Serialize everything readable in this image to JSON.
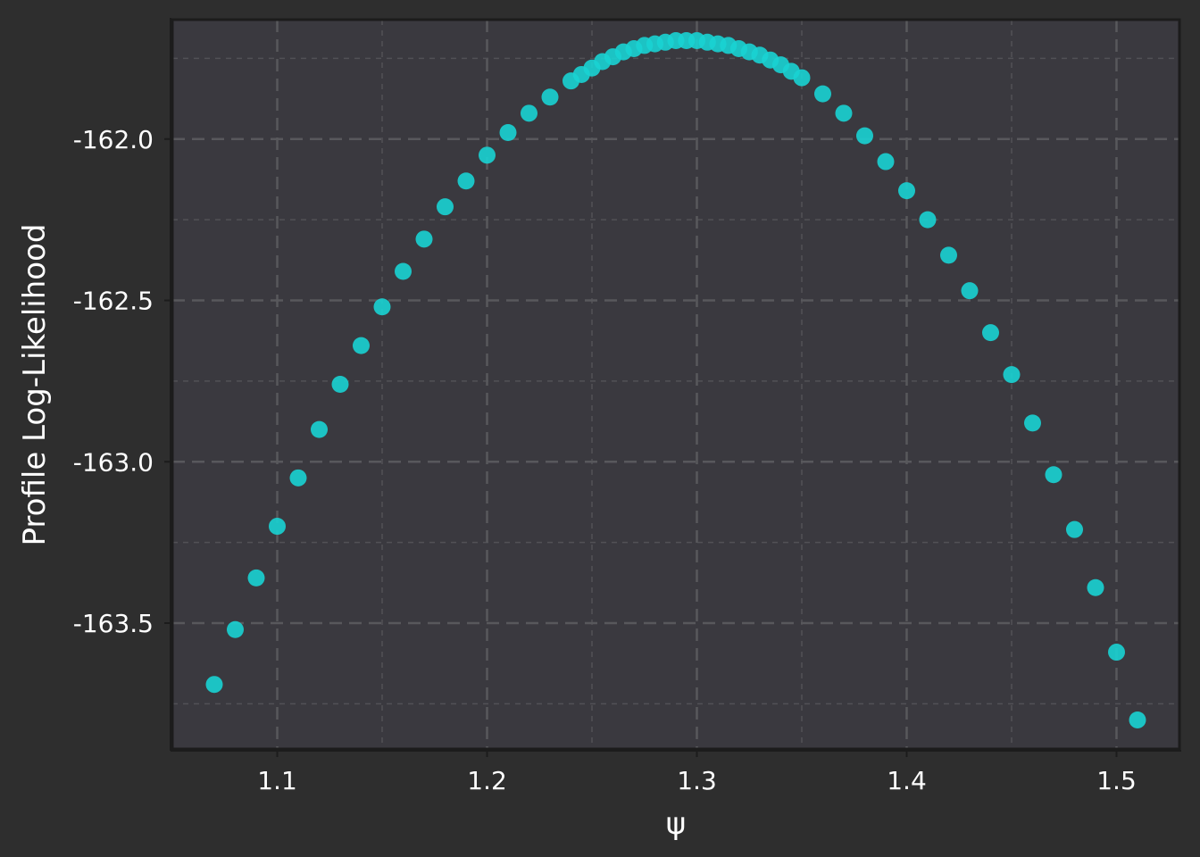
{
  "colors": {
    "figure_background": "#2e2e2e",
    "plot_background": "#3a393f",
    "frame": "#1c1c1c",
    "grid": "#58585c",
    "point": "#19d3d3",
    "text": "#ffffff"
  },
  "chart_data": {
    "type": "scatter",
    "xlabel": "ψ",
    "ylabel": "Profile Log-Likelihood",
    "xlim": [
      1.05,
      1.53
    ],
    "ylim": [
      -163.89,
      -161.63
    ],
    "x_ticks": [
      1.1,
      1.2,
      1.3,
      1.4,
      1.5
    ],
    "x_tick_labels": [
      "1.1",
      "1.2",
      "1.3",
      "1.4",
      "1.5"
    ],
    "y_ticks": [
      -162.0,
      -162.5,
      -163.0,
      -163.5
    ],
    "y_tick_labels": [
      "-162.0",
      "-162.5",
      "-163.0",
      "-163.5"
    ],
    "x_minor_ticks": [
      1.15,
      1.25,
      1.35,
      1.45
    ],
    "y_minor_ticks": [
      -161.75,
      -162.25,
      -162.75,
      -163.25,
      -163.75
    ],
    "grid": true,
    "series": [
      {
        "x": [
          1.07,
          1.08,
          1.09,
          1.1,
          1.11,
          1.12,
          1.13,
          1.14,
          1.15,
          1.16,
          1.17,
          1.18,
          1.19,
          1.2,
          1.21,
          1.22,
          1.23,
          1.24,
          1.245,
          1.25,
          1.255,
          1.26,
          1.265,
          1.27,
          1.275,
          1.28,
          1.285,
          1.29,
          1.295,
          1.3,
          1.305,
          1.31,
          1.315,
          1.32,
          1.325,
          1.33,
          1.335,
          1.34,
          1.345,
          1.35,
          1.36,
          1.37,
          1.38,
          1.39,
          1.4,
          1.41,
          1.42,
          1.43,
          1.44,
          1.45,
          1.46,
          1.47,
          1.48,
          1.49,
          1.5,
          1.51
        ],
        "y": [
          -163.69,
          -163.52,
          -163.36,
          -163.2,
          -163.05,
          -162.9,
          -162.76,
          -162.64,
          -162.52,
          -162.41,
          -162.31,
          -162.21,
          -162.13,
          -162.05,
          -161.98,
          -161.92,
          -161.87,
          -161.82,
          -161.8,
          -161.78,
          -161.76,
          -161.745,
          -161.73,
          -161.72,
          -161.71,
          -161.705,
          -161.7,
          -161.695,
          -161.695,
          -161.695,
          -161.7,
          -161.705,
          -161.71,
          -161.72,
          -161.73,
          -161.74,
          -161.755,
          -161.77,
          -161.79,
          -161.81,
          -161.86,
          -161.92,
          -161.99,
          -162.07,
          -162.16,
          -162.25,
          -162.36,
          -162.47,
          -162.6,
          -162.73,
          -162.88,
          -163.04,
          -163.21,
          -163.39,
          -163.59,
          -163.8
        ]
      }
    ]
  }
}
